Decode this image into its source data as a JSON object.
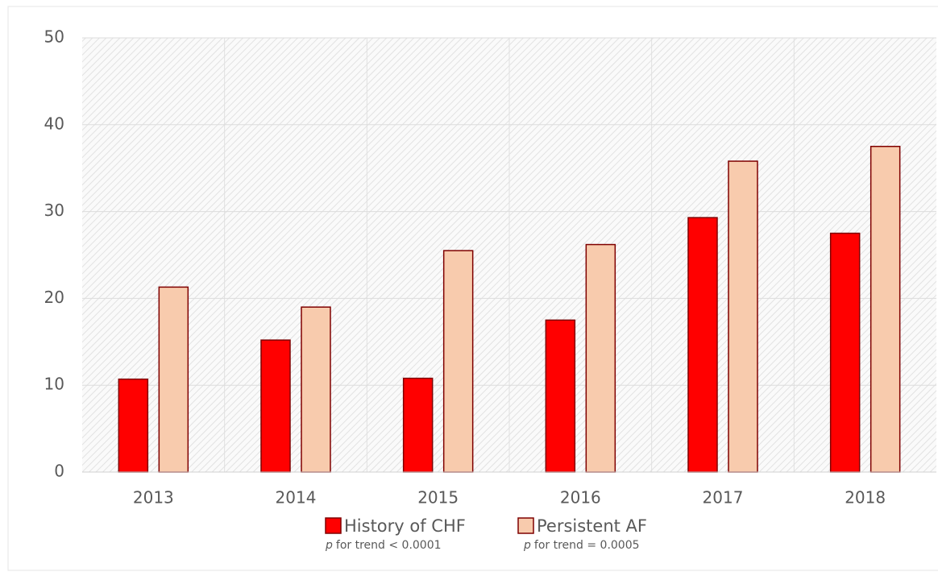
{
  "chart_data": {
    "type": "bar",
    "categories": [
      "2013",
      "2014",
      "2015",
      "2016",
      "2017",
      "2018"
    ],
    "series": [
      {
        "name": "History of CHF",
        "color": "#ff0000",
        "values": [
          10.7,
          15.2,
          10.8,
          17.5,
          29.3,
          27.5
        ]
      },
      {
        "name": "Persistent AF",
        "color": "#f8cbad",
        "values": [
          21.3,
          19.0,
          25.5,
          26.2,
          35.8,
          37.5
        ]
      }
    ],
    "annotations": [
      {
        "italic": "p",
        "text": "for trend < 0.0001"
      },
      {
        "italic": "p",
        "text": "for trend = 0.0005"
      }
    ],
    "ylim": [
      0,
      50
    ],
    "yticks": [
      0,
      10,
      20,
      30,
      40,
      50
    ],
    "grid": true,
    "legend": "bottom"
  }
}
